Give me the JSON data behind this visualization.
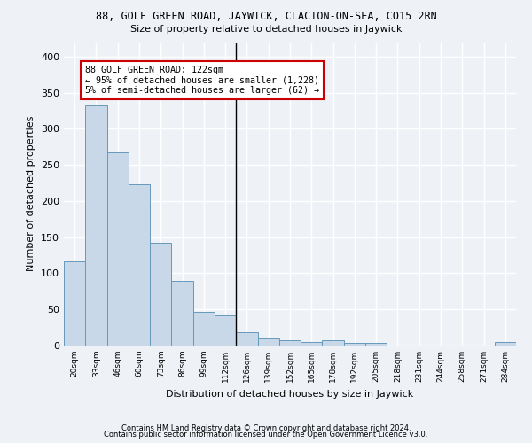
{
  "title": "88, GOLF GREEN ROAD, JAYWICK, CLACTON-ON-SEA, CO15 2RN",
  "subtitle": "Size of property relative to detached houses in Jaywick",
  "xlabel": "Distribution of detached houses by size in Jaywick",
  "ylabel": "Number of detached properties",
  "categories": [
    "20sqm",
    "33sqm",
    "46sqm",
    "60sqm",
    "73sqm",
    "86sqm",
    "99sqm",
    "112sqm",
    "126sqm",
    "139sqm",
    "152sqm",
    "165sqm",
    "178sqm",
    "192sqm",
    "205sqm",
    "218sqm",
    "231sqm",
    "244sqm",
    "258sqm",
    "271sqm",
    "284sqm"
  ],
  "values": [
    117,
    332,
    267,
    223,
    142,
    90,
    46,
    42,
    19,
    10,
    7,
    5,
    7,
    4,
    4,
    0,
    0,
    0,
    0,
    0,
    5
  ],
  "bar_color": "#c8d8e8",
  "bar_edge_color": "#6699bb",
  "highlight_index": 8,
  "annotation_text": "88 GOLF GREEN ROAD: 122sqm\n← 95% of detached houses are smaller (1,228)\n5% of semi-detached houses are larger (62) →",
  "annotation_box_color": "#ffffff",
  "annotation_box_edge": "#cc0000",
  "ylim": [
    0,
    420
  ],
  "yticks": [
    0,
    50,
    100,
    150,
    200,
    250,
    300,
    350,
    400
  ],
  "background_color": "#eef2f7",
  "grid_color": "#ffffff",
  "footnote1": "Contains HM Land Registry data © Crown copyright and database right 2024.",
  "footnote2": "Contains public sector information licensed under the Open Government Licence v3.0."
}
